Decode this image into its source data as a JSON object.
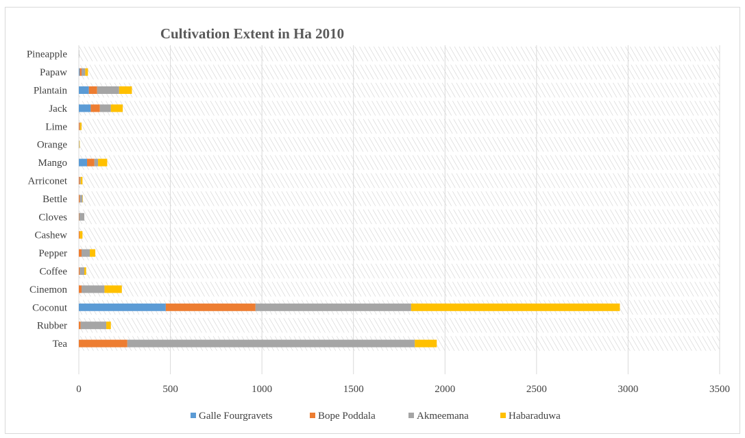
{
  "chart_data": {
    "type": "bar",
    "orientation": "horizontal",
    "stacked": true,
    "title": "Cultivation Extent in Ha 2010",
    "xlabel": "",
    "ylabel": "",
    "xlim": [
      0,
      3500
    ],
    "xticks": [
      0,
      500,
      1000,
      1500,
      2000,
      2500,
      3000,
      3500
    ],
    "grid": "vertical",
    "legend_position": "bottom",
    "categories": [
      "Tea",
      "Rubber",
      "Coconut",
      "Cinemon",
      "Coffee",
      "Pepper",
      "Cashew",
      "Cloves",
      "Bettle",
      "Arriconet",
      "Mango",
      "Orange",
      "Lime",
      "Jack",
      "Plantain",
      "Papaw",
      "Pineapple"
    ],
    "series": [
      {
        "name": "Galle Fourgravets",
        "color": "#5b9bd5",
        "values": [
          0,
          0,
          475,
          0,
          0,
          0,
          0,
          0,
          0,
          0,
          45,
          0,
          0,
          65,
          55,
          5,
          0
        ]
      },
      {
        "name": "Bope Poddala",
        "color": "#ed7d31",
        "values": [
          265,
          10,
          490,
          15,
          5,
          15,
          5,
          2,
          5,
          5,
          40,
          0,
          5,
          50,
          45,
          10,
          0
        ]
      },
      {
        "name": "Akmeemana",
        "color": "#a5a5a5",
        "values": [
          1570,
          140,
          850,
          125,
          25,
          45,
          0,
          28,
          15,
          5,
          20,
          3,
          2,
          60,
          120,
          20,
          2
        ]
      },
      {
        "name": "Habaraduwa",
        "color": "#ffc000",
        "values": [
          120,
          25,
          1140,
          95,
          10,
          30,
          15,
          0,
          2,
          10,
          50,
          2,
          8,
          65,
          70,
          15,
          0
        ]
      }
    ]
  }
}
